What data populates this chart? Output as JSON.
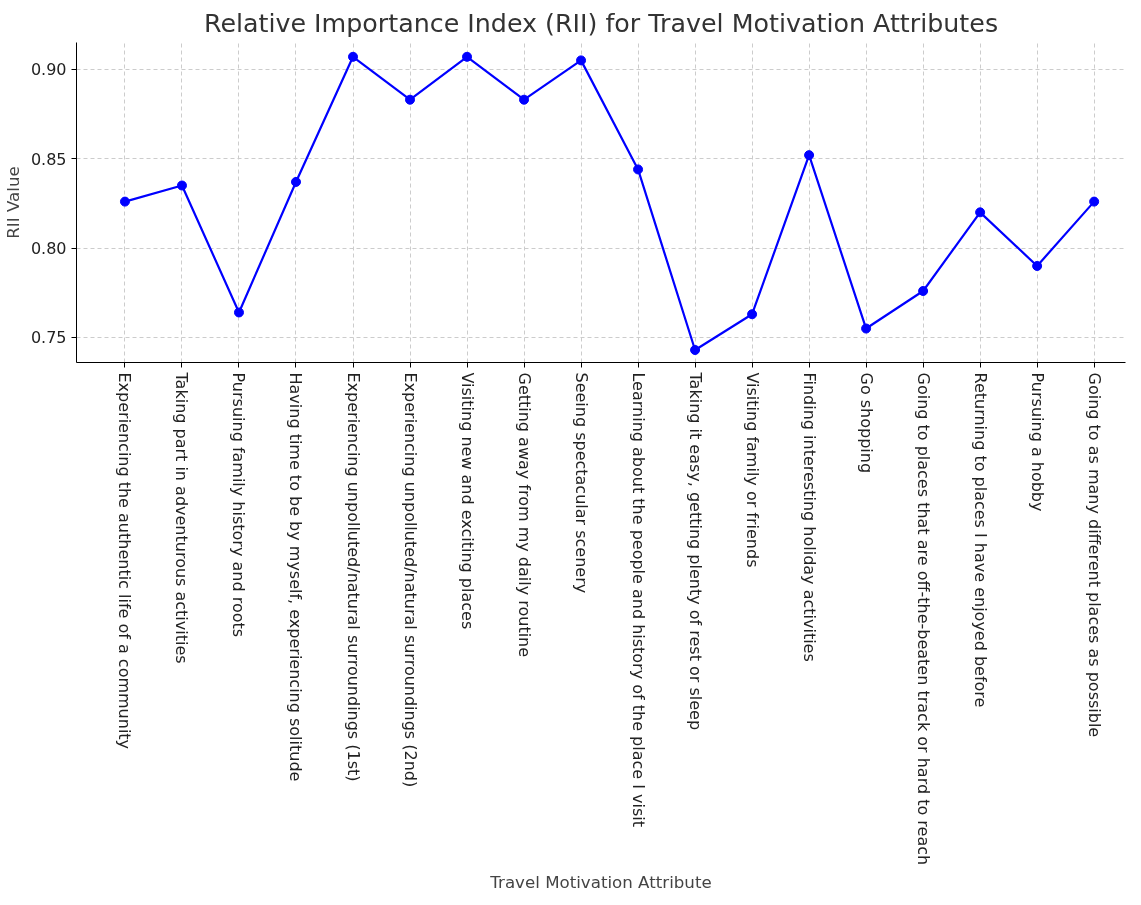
{
  "chart_data": {
    "type": "line",
    "title": "Relative Importance Index (RII) for Travel Motivation Attributes",
    "xlabel": "Travel Motivation Attribute",
    "ylabel": "RII Value",
    "categories": [
      "Experiencing the authentic life of a community",
      "Taking part in adventurous activities",
      "Pursuing family history and roots",
      "Having time to be by myself, experiencing solitude",
      "Experiencing unpolluted/natural surroundings (1st)",
      "Experiencing unpolluted/natural surroundings (2nd)",
      "Visiting new and exciting places",
      "Getting away from my daily routine",
      "Seeing spectacular scenery",
      "Learning about the people and history of the place I visit",
      "Taking it easy, getting plenty of rest or sleep",
      "Visiting family or friends",
      "Finding interesting holiday activities",
      "Go shopping",
      "Going to places that are off-the-beaten track or hard to reach",
      "Returning to places I have enjoyed before",
      "Pursuing a hobby",
      "Going to as many different places as possible"
    ],
    "series": [
      {
        "color": "#0000ff",
        "values": [
          0.826,
          0.835,
          0.764,
          0.837,
          0.907,
          0.883,
          0.907,
          0.883,
          0.905,
          0.844,
          0.743,
          0.763,
          0.852,
          0.755,
          0.776,
          0.82,
          0.79,
          0.826
        ]
      }
    ],
    "ylim": [
      0.736,
      0.915
    ],
    "yticks": [
      {
        "value": 0.75,
        "label": "0.75"
      },
      {
        "value": 0.8,
        "label": "0.80"
      },
      {
        "value": 0.85,
        "label": "0.85"
      },
      {
        "value": 0.9,
        "label": "0.90"
      }
    ],
    "grid": true,
    "marker": "circle",
    "line_style": "solid"
  }
}
